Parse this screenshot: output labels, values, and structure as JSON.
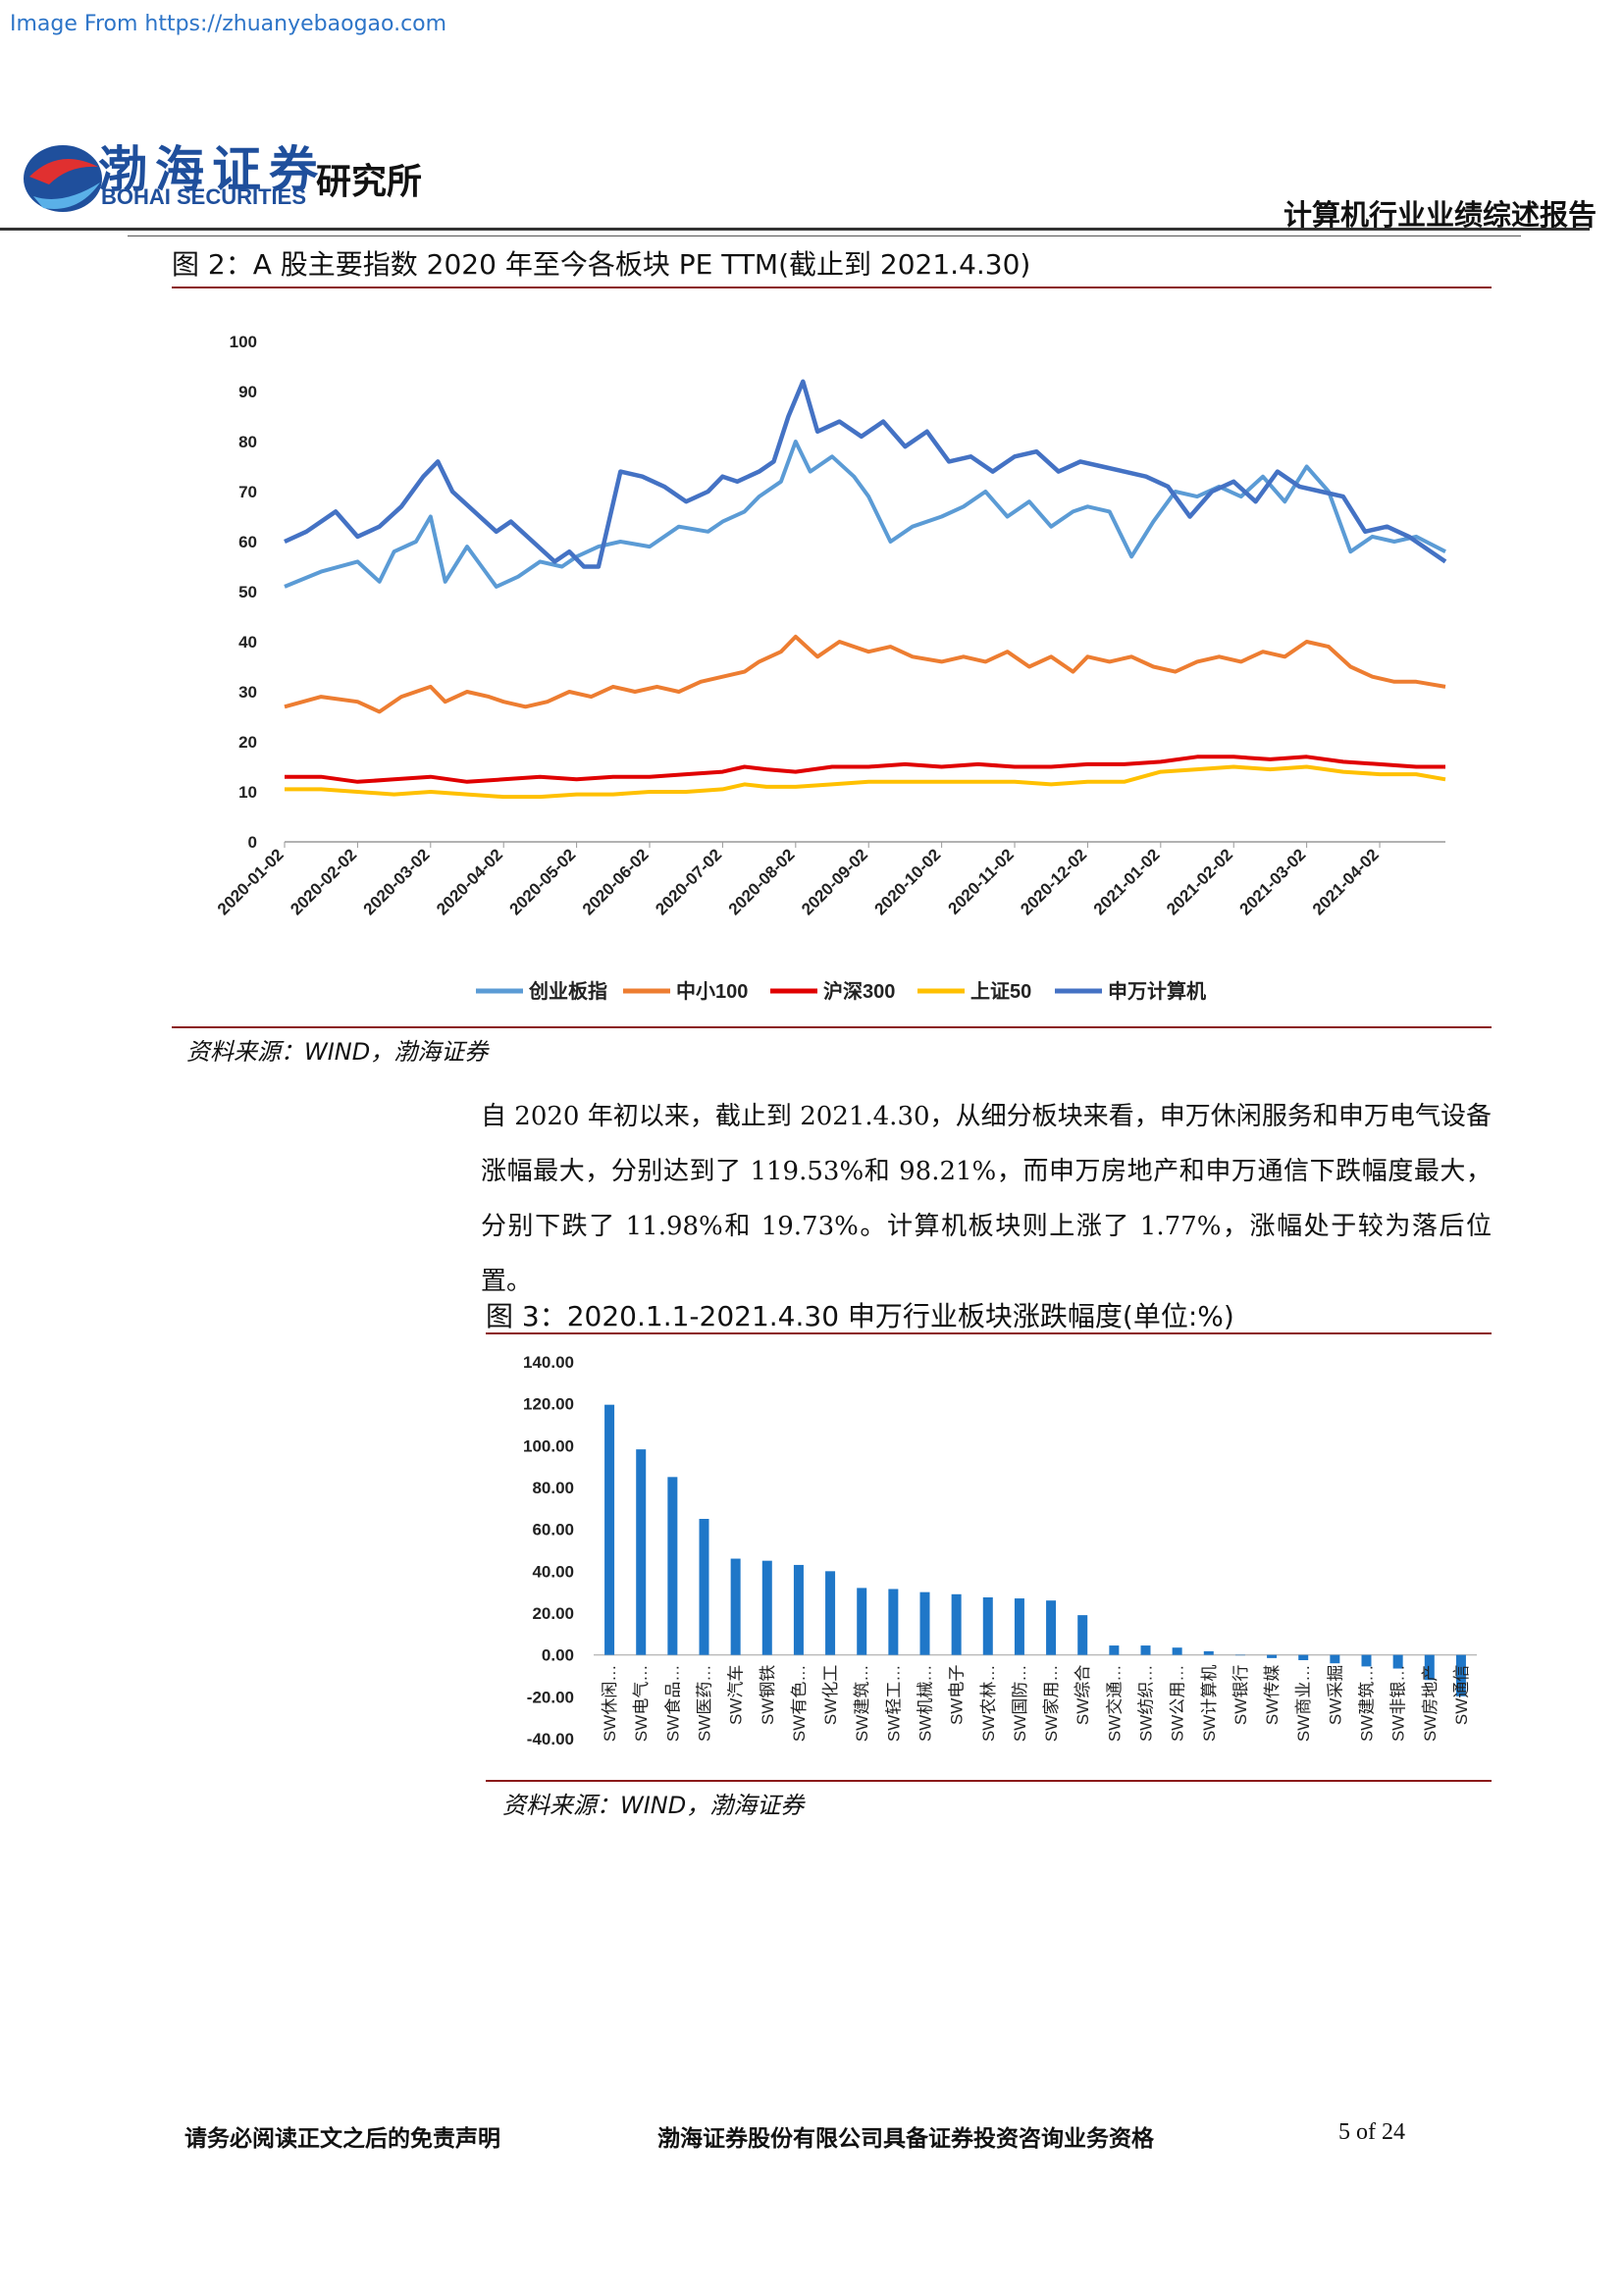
{
  "watermark": "Image From https://zhuanyebaogao.com",
  "header": {
    "logo_cn": "渤海证券",
    "logo_en": "BOHAI SECURITIES",
    "institute": "研究所",
    "report_title": "计算机行业业绩综述报告"
  },
  "figure2": {
    "title": "图 2：A 股主要指数 2020 年至今各板块 PE TTM(截止到 2021.4.30)",
    "source": "资料来源：WIND，渤海证券",
    "chart_data": {
      "type": "line",
      "ylim": [
        0,
        100
      ],
      "yticks": [
        0,
        10,
        20,
        30,
        40,
        50,
        60,
        70,
        80,
        90,
        100
      ],
      "xticks": [
        "2020-01-02",
        "2020-02-02",
        "2020-03-02",
        "2020-04-02",
        "2020-05-02",
        "2020-06-02",
        "2020-07-02",
        "2020-08-02",
        "2020-09-02",
        "2020-10-02",
        "2020-11-02",
        "2020-12-02",
        "2021-01-02",
        "2021-02-02",
        "2021-03-02",
        "2021-04-02"
      ],
      "legend_position": "bottom",
      "series": [
        {
          "name": "创业板指",
          "color": "#5b9bd5",
          "x": [
            0,
            0.5,
            1,
            1.3,
            1.5,
            1.8,
            2.0,
            2.2,
            2.5,
            2.7,
            2.9,
            3.2,
            3.5,
            3.8,
            4.0,
            4.3,
            4.6,
            5.0,
            5.4,
            5.8,
            6.0,
            6.3,
            6.5,
            6.8,
            7.0,
            7.2,
            7.5,
            7.8,
            8.0,
            8.3,
            8.6,
            9.0,
            9.3,
            9.6,
            9.9,
            10.2,
            10.5,
            10.8,
            11.0,
            11.3,
            11.6,
            11.9,
            12.2,
            12.5,
            12.8,
            13.1,
            13.4,
            13.7,
            14.0,
            14.3,
            14.6,
            14.9,
            15.2,
            15.5,
            15.9
          ],
          "y": [
            51,
            54,
            56,
            52,
            58,
            60,
            65,
            52,
            59,
            55,
            51,
            53,
            56,
            55,
            57,
            59,
            60,
            59,
            63,
            62,
            64,
            66,
            69,
            72,
            80,
            74,
            77,
            73,
            69,
            60,
            63,
            65,
            67,
            70,
            65,
            68,
            63,
            66,
            67,
            66,
            57,
            64,
            70,
            69,
            71,
            69,
            73,
            68,
            75,
            70,
            58,
            61,
            60,
            61,
            58
          ]
        },
        {
          "name": "中小100",
          "color": "#ed7d31",
          "x": [
            0,
            0.5,
            1,
            1.3,
            1.6,
            2.0,
            2.2,
            2.5,
            2.8,
            3.0,
            3.3,
            3.6,
            3.9,
            4.2,
            4.5,
            4.8,
            5.1,
            5.4,
            5.7,
            6.0,
            6.3,
            6.5,
            6.8,
            7.0,
            7.3,
            7.6,
            8.0,
            8.3,
            8.6,
            9.0,
            9.3,
            9.6,
            9.9,
            10.2,
            10.5,
            10.8,
            11.0,
            11.3,
            11.6,
            11.9,
            12.2,
            12.5,
            12.8,
            13.1,
            13.4,
            13.7,
            14.0,
            14.3,
            14.6,
            14.9,
            15.2,
            15.5,
            15.9
          ],
          "y": [
            27,
            29,
            28,
            26,
            29,
            31,
            28,
            30,
            29,
            28,
            27,
            28,
            30,
            29,
            31,
            30,
            31,
            30,
            32,
            33,
            34,
            36,
            38,
            41,
            37,
            40,
            38,
            39,
            37,
            36,
            37,
            36,
            38,
            35,
            37,
            34,
            37,
            36,
            37,
            35,
            34,
            36,
            37,
            36,
            38,
            37,
            40,
            39,
            35,
            33,
            32,
            32,
            31
          ]
        },
        {
          "name": "沪深300",
          "color": "#e00000",
          "x": [
            0,
            0.5,
            1,
            1.5,
            2,
            2.5,
            3,
            3.5,
            4,
            4.5,
            5,
            5.5,
            6,
            6.3,
            6.6,
            7,
            7.5,
            8,
            8.5,
            9,
            9.5,
            10,
            10.5,
            11,
            11.5,
            12,
            12.5,
            13,
            13.5,
            14,
            14.5,
            15,
            15.5,
            15.9
          ],
          "y": [
            13,
            13,
            12,
            12.5,
            13,
            12,
            12.5,
            13,
            12.5,
            13,
            13,
            13.5,
            14,
            15,
            14.5,
            14,
            15,
            15,
            15.5,
            15,
            15.5,
            15,
            15,
            15.5,
            15.5,
            16,
            17,
            17,
            16.5,
            17,
            16,
            15.5,
            15,
            15
          ]
        },
        {
          "name": "上证50",
          "color": "#ffc000",
          "x": [
            0,
            0.5,
            1,
            1.5,
            2,
            2.5,
            3,
            3.5,
            4,
            4.5,
            5,
            5.5,
            6,
            6.3,
            6.6,
            7,
            7.5,
            8,
            8.5,
            9,
            9.5,
            10,
            10.5,
            11,
            11.5,
            12,
            12.5,
            13,
            13.5,
            14,
            14.5,
            15,
            15.5,
            15.9
          ],
          "y": [
            10.5,
            10.5,
            10,
            9.5,
            10,
            9.5,
            9,
            9,
            9.5,
            9.5,
            10,
            10,
            10.5,
            11.5,
            11,
            11,
            11.5,
            12,
            12,
            12,
            12,
            12,
            11.5,
            12,
            12,
            14,
            14.5,
            15,
            14.5,
            15,
            14,
            13.5,
            13.5,
            12.5
          ]
        },
        {
          "name": "申万计算机",
          "color": "#4472c4",
          "x": [
            0,
            0.3,
            0.7,
            1.0,
            1.3,
            1.6,
            1.9,
            2.1,
            2.3,
            2.6,
            2.9,
            3.1,
            3.4,
            3.7,
            3.9,
            4.1,
            4.3,
            4.6,
            4.9,
            5.2,
            5.5,
            5.8,
            6.0,
            6.2,
            6.5,
            6.7,
            6.9,
            7.1,
            7.3,
            7.6,
            7.9,
            8.2,
            8.5,
            8.8,
            9.1,
            9.4,
            9.7,
            10.0,
            10.3,
            10.6,
            10.9,
            11.2,
            11.5,
            11.8,
            12.1,
            12.4,
            12.7,
            13.0,
            13.3,
            13.6,
            13.9,
            14.2,
            14.5,
            14.8,
            15.1,
            15.4,
            15.7,
            15.9
          ],
          "y": [
            60,
            62,
            66,
            61,
            63,
            67,
            73,
            76,
            70,
            66,
            62,
            64,
            60,
            56,
            58,
            55,
            55,
            74,
            73,
            71,
            68,
            70,
            73,
            72,
            74,
            76,
            85,
            92,
            82,
            84,
            81,
            84,
            79,
            82,
            76,
            77,
            74,
            77,
            78,
            74,
            76,
            75,
            74,
            73,
            71,
            65,
            70,
            72,
            68,
            74,
            71,
            70,
            69,
            62,
            63,
            61,
            58,
            56
          ]
        }
      ]
    }
  },
  "paragraph": {
    "text": "自 2020 年初以来，截止到 2021.4.30，从细分板块来看，申万休闲服务和申万电气设备涨幅最大，分别达到了 119.53%和 98.21%，而申万房地产和申万通信下跌幅度最大，分别下跌了 11.98%和 19.73%。计算机板块则上涨了 1.77%，涨幅处于较为落后位置。"
  },
  "figure3": {
    "title": "图 3：2020.1.1-2021.4.30 申万行业板块涨跌幅度(单位:%)",
    "source": "资料来源：WIND，渤海证券",
    "chart_data": {
      "type": "bar",
      "color": "#1f77c8",
      "ylim": [
        -40,
        140
      ],
      "yticks": [
        "140.00",
        "120.00",
        "100.00",
        "80.00",
        "60.00",
        "40.00",
        "20.00",
        "0.00",
        "-20.00",
        "-40.00"
      ],
      "categories": [
        "SW休闲…",
        "SW电气…",
        "SW食品…",
        "SW医药…",
        "SW汽车",
        "SW钢铁",
        "SW有色…",
        "SW化工",
        "SW建筑…",
        "SW轻工…",
        "SW机械…",
        "SW电子",
        "SW农林…",
        "SW国防…",
        "SW家用…",
        "SW综合",
        "SW交通…",
        "SW纺织…",
        "SW公用…",
        "SW计算机",
        "SW银行",
        "SW传媒",
        "SW商业…",
        "SW采掘",
        "SW建筑…",
        "SW非银…",
        "SW房地产",
        "SW通信"
      ],
      "values": [
        119.53,
        98.21,
        85,
        65,
        46,
        45,
        43,
        40,
        32,
        31.5,
        30,
        29,
        27.5,
        27,
        26,
        19,
        4.5,
        4.5,
        3.5,
        1.77,
        0,
        -1.5,
        -2.5,
        -4,
        -5.5,
        -6.5,
        -11.98,
        -19.73
      ]
    }
  },
  "footer": {
    "left": "请务必阅读正文之后的免责声明",
    "middle": "渤海证券股份有限公司具备证券投资咨询业务资格",
    "page": "5 of 24"
  }
}
